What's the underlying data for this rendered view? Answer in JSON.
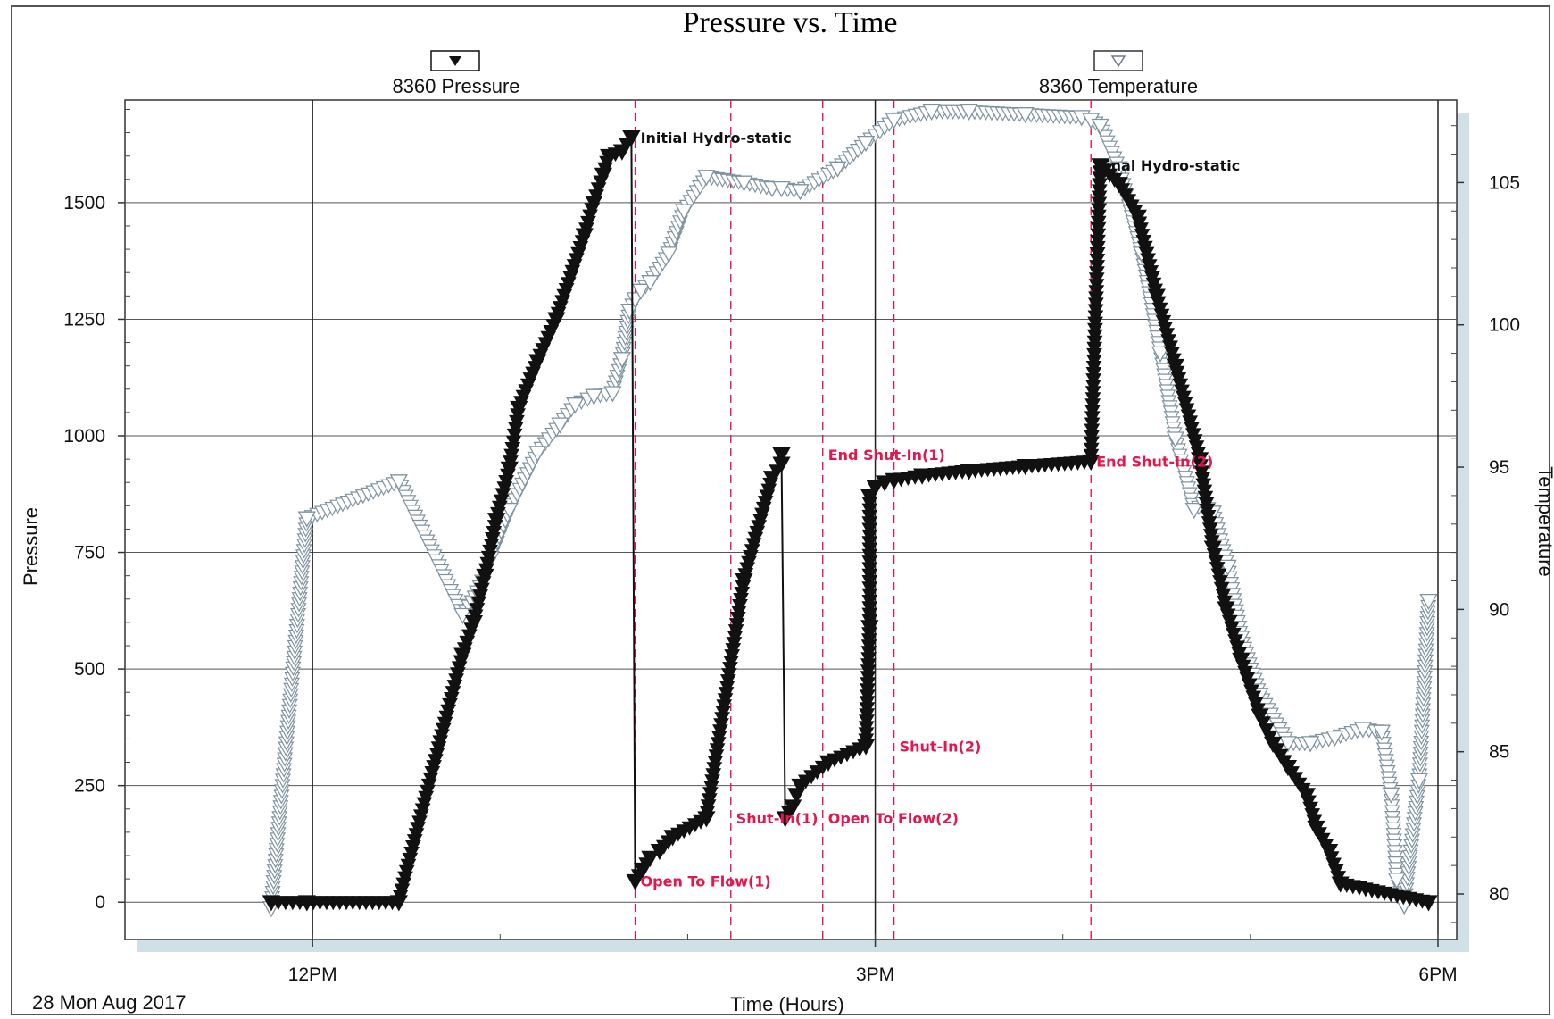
{
  "chart_data": {
    "type": "line",
    "title": "Pressure vs. Time",
    "xlabel": "Time (Hours)",
    "ylabel": "Pressure",
    "y2label": "Temperature",
    "date_label": "28 Mon Aug 2017",
    "x_range_hours": [
      11.0,
      18.1
    ],
    "x_ticks": [
      {
        "hour": 12,
        "label": "12PM"
      },
      {
        "hour": 15,
        "label": "3PM"
      },
      {
        "hour": 18,
        "label": "6PM"
      }
    ],
    "y_left": {
      "range": [
        -80,
        1720
      ],
      "ticks": [
        0,
        250,
        500,
        750,
        1000,
        1250,
        1500
      ]
    },
    "y_right": {
      "range": [
        78.4,
        107.9
      ],
      "ticks": [
        80,
        85,
        90,
        95,
        100,
        105
      ]
    },
    "grid": true,
    "series": [
      {
        "name": "8360 Pressure",
        "axis": "left",
        "marker": "filled-down-triangle",
        "color": "#111111",
        "x": [
          11.78,
          11.97,
          12.46,
          12.8,
          12.86,
          12.92,
          12.98,
          13.05,
          13.1,
          13.2,
          13.3,
          13.45,
          13.5,
          13.55,
          13.58,
          13.65,
          13.7,
          13.72,
          13.76,
          13.8,
          13.85,
          13.92,
          14.1,
          14.3,
          14.45,
          14.5,
          14.5,
          14.52,
          14.56,
          14.58,
          14.6,
          14.75,
          14.95,
          14.97,
          14.97,
          15.0,
          15.05,
          15.1,
          15.25,
          15.5,
          15.8,
          16.15,
          16.2,
          16.3,
          16.4,
          16.5,
          16.6,
          16.73,
          16.8,
          16.87,
          16.95,
          17.05,
          17.12,
          17.2,
          17.3,
          17.35,
          17.42,
          17.48,
          17.95
        ],
        "y": [
          0,
          0,
          0,
          530,
          600,
          700,
          820,
          930,
          1060,
          1160,
          1250,
          1430,
          1500,
          1560,
          1600,
          1610,
          1640,
          45,
          70,
          95,
          110,
          140,
          180,
          690,
          910,
          940,
          960,
          180,
          205,
          230,
          250,
          300,
          335,
          590,
          870,
          890,
          900,
          905,
          915,
          925,
          935,
          945,
          1580,
          1540,
          1470,
          1300,
          1150,
          950,
          760,
          630,
          520,
          400,
          340,
          290,
          230,
          160,
          110,
          40,
          0
        ]
      },
      {
        "name": "8360 Temperature",
        "axis": "right",
        "marker": "open-down-triangle",
        "color": "#8a8a8a",
        "x": [
          11.78,
          11.97,
          12.46,
          12.8,
          12.88,
          12.95,
          13.05,
          13.2,
          13.32,
          13.4,
          13.5,
          13.6,
          13.65,
          13.69,
          13.72,
          13.75,
          13.8,
          13.9,
          13.98,
          14.1,
          14.3,
          14.45,
          14.5,
          14.6,
          14.8,
          14.95,
          15.1,
          15.3,
          15.5,
          15.8,
          16.1,
          16.15,
          16.2,
          16.3,
          16.42,
          16.52,
          16.6,
          16.7,
          16.75,
          16.8,
          16.88,
          16.95,
          17.05,
          17.2,
          17.32,
          17.45,
          17.6,
          17.7,
          17.75,
          17.78,
          17.82,
          17.9,
          17.95
        ],
        "y": [
          79.5,
          93.2,
          94.5,
          89.8,
          90.6,
          91.8,
          93.5,
          95.5,
          96.5,
          97.2,
          97.5,
          97.6,
          98.8,
          100.5,
          100.9,
          101.2,
          101.5,
          102.5,
          104.0,
          105.2,
          105.0,
          104.8,
          104.8,
          104.7,
          105.5,
          106.4,
          107.2,
          107.5,
          107.5,
          107.4,
          107.3,
          107.2,
          107.0,
          105.5,
          102.5,
          99.0,
          96.0,
          93.5,
          93.7,
          93.4,
          91.5,
          89.0,
          87.0,
          85.3,
          85.3,
          85.5,
          85.8,
          85.7,
          83.5,
          80.5,
          79.6,
          84.0,
          90.3
        ]
      }
    ],
    "annotations": [
      {
        "text": "Initial Hydro-static",
        "color": "#111111",
        "x": 13.72,
        "y": 1640
      },
      {
        "text": "Final Hydro-static",
        "color": "#111111",
        "x": 16.15,
        "y": 1580
      },
      {
        "text": "Open To Flow(1)",
        "color": "#e2174d",
        "x": 13.72,
        "y": 45
      },
      {
        "text": "Shut-In(1)",
        "color": "#e2174d",
        "x": 14.23,
        "y": 180
      },
      {
        "text": "End Shut-In(1)",
        "color": "#e2174d",
        "x": 14.72,
        "y": 960
      },
      {
        "text": "Open To Flow(2)",
        "color": "#e2174d",
        "x": 14.72,
        "y": 180
      },
      {
        "text": "Shut-In(2)",
        "color": "#e2174d",
        "x": 15.1,
        "y": 335
      },
      {
        "text": "End Shut-In(2)",
        "color": "#e2174d",
        "x": 16.15,
        "y": 945
      }
    ],
    "event_lines_hours": [
      13.72,
      14.23,
      14.72,
      15.1,
      16.15
    ],
    "legend": {
      "placement": "top",
      "items": [
        "8360 Pressure",
        "8360 Temperature"
      ]
    }
  }
}
